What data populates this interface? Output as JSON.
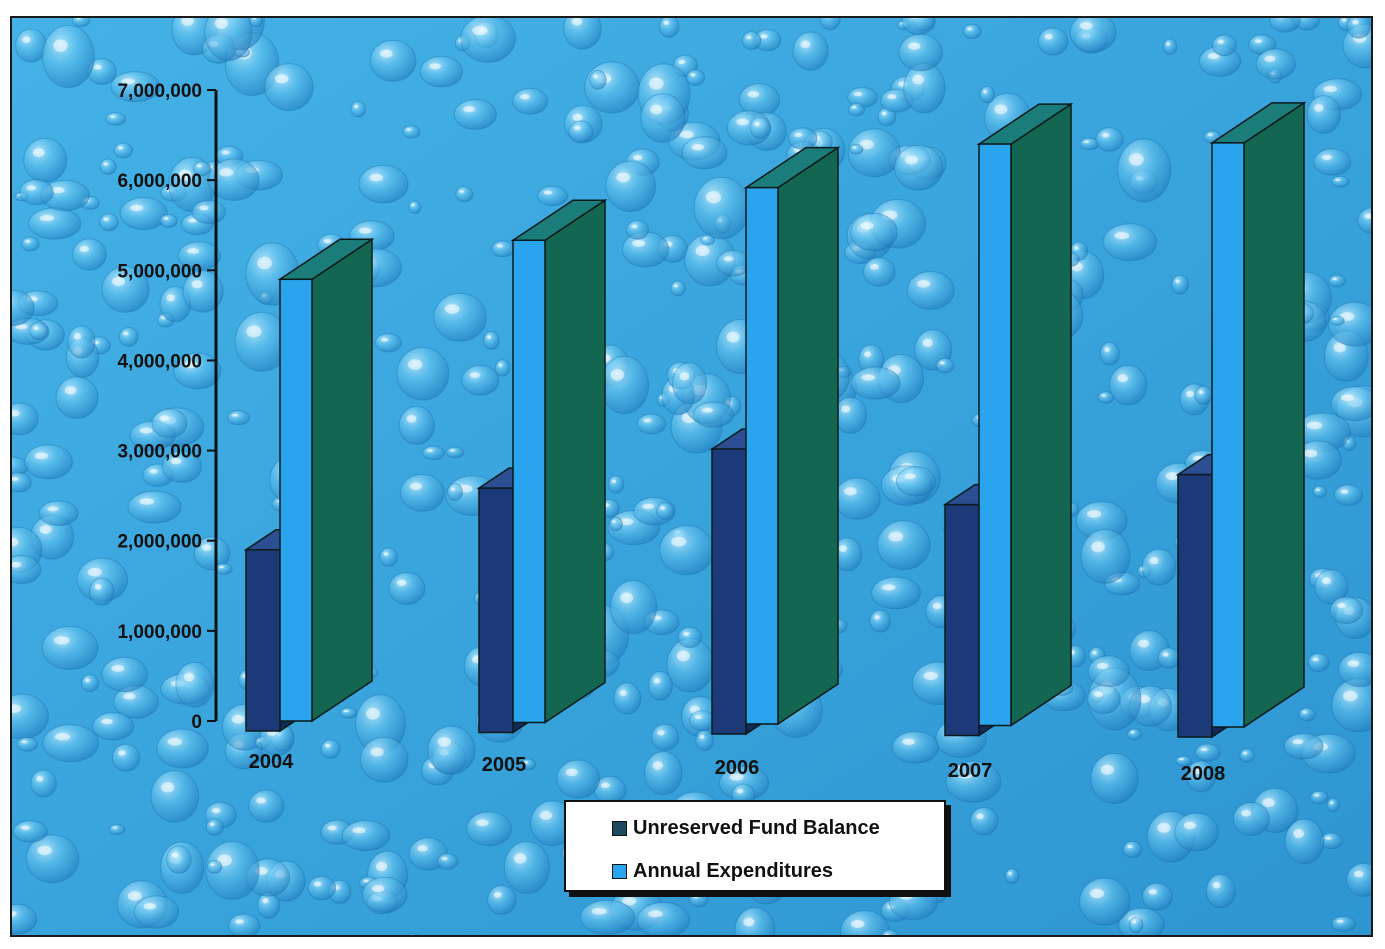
{
  "chart_data": {
    "type": "bar",
    "categories": [
      "2004",
      "2005",
      "2006",
      "2007",
      "2008"
    ],
    "series": [
      {
        "name": "Unreserved Fund Balance",
        "values": [
          1900000,
          2600000,
          3050000,
          2450000,
          2800000
        ]
      },
      {
        "name": "Annual Expenditures",
        "values": [
          4900000,
          5350000,
          5950000,
          6450000,
          6480000
        ]
      }
    ],
    "ylim": [
      0,
      7000000
    ],
    "yticks": [
      0,
      1000000,
      2000000,
      3000000,
      4000000,
      5000000,
      6000000,
      7000000
    ],
    "ytick_labels": [
      "0",
      "1,000,000",
      "2,000,000",
      "3,000,000",
      "4,000,000",
      "5,000,000",
      "6,000,000",
      "7,000,000"
    ],
    "legend_position": "bottom-center",
    "grid": false,
    "title": "",
    "xlabel": "",
    "ylabel": ""
  },
  "colors": {
    "background": "#3aa6dd",
    "fund_balance_front": "#1d3a78",
    "fund_balance_side": "#12295a",
    "fund_balance_top": "#2c4f94",
    "expenditures_front": "#2aa4ec",
    "expenditures_side": "#136650",
    "expenditures_top": "#1b7d7a"
  }
}
